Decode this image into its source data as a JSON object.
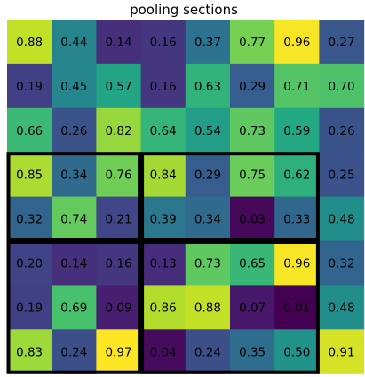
{
  "title": "pooling sections",
  "colormap": "viridis",
  "grid": {
    "rows": 8,
    "cols": 8,
    "values": [
      [
        "0.88",
        "0.44",
        "0.14",
        "0.16",
        "0.37",
        "0.77",
        "0.96",
        "0.27"
      ],
      [
        "0.19",
        "0.45",
        "0.57",
        "0.16",
        "0.63",
        "0.29",
        "0.71",
        "0.70"
      ],
      [
        "0.66",
        "0.26",
        "0.82",
        "0.64",
        "0.54",
        "0.73",
        "0.59",
        "0.26"
      ],
      [
        "0.85",
        "0.34",
        "0.76",
        "0.84",
        "0.29",
        "0.75",
        "0.62",
        "0.25"
      ],
      [
        "0.32",
        "0.74",
        "0.21",
        "0.39",
        "0.34",
        "0.03",
        "0.33",
        "0.48"
      ],
      [
        "0.20",
        "0.14",
        "0.16",
        "0.13",
        "0.73",
        "0.65",
        "0.96",
        "0.32"
      ],
      [
        "0.19",
        "0.69",
        "0.09",
        "0.86",
        "0.88",
        "0.07",
        "0.01",
        "0.48"
      ],
      [
        "0.83",
        "0.24",
        "0.97",
        "0.04",
        "0.24",
        "0.35",
        "0.50",
        "0.91"
      ]
    ]
  },
  "pooling_sections": [
    {
      "row_start": 3,
      "row_end": 4,
      "col_start": 0,
      "col_end": 2
    },
    {
      "row_start": 3,
      "row_end": 4,
      "col_start": 3,
      "col_end": 6
    },
    {
      "row_start": 5,
      "row_end": 7,
      "col_start": 0,
      "col_end": 2
    },
    {
      "row_start": 5,
      "row_end": 7,
      "col_start": 3,
      "col_end": 6
    }
  ]
}
